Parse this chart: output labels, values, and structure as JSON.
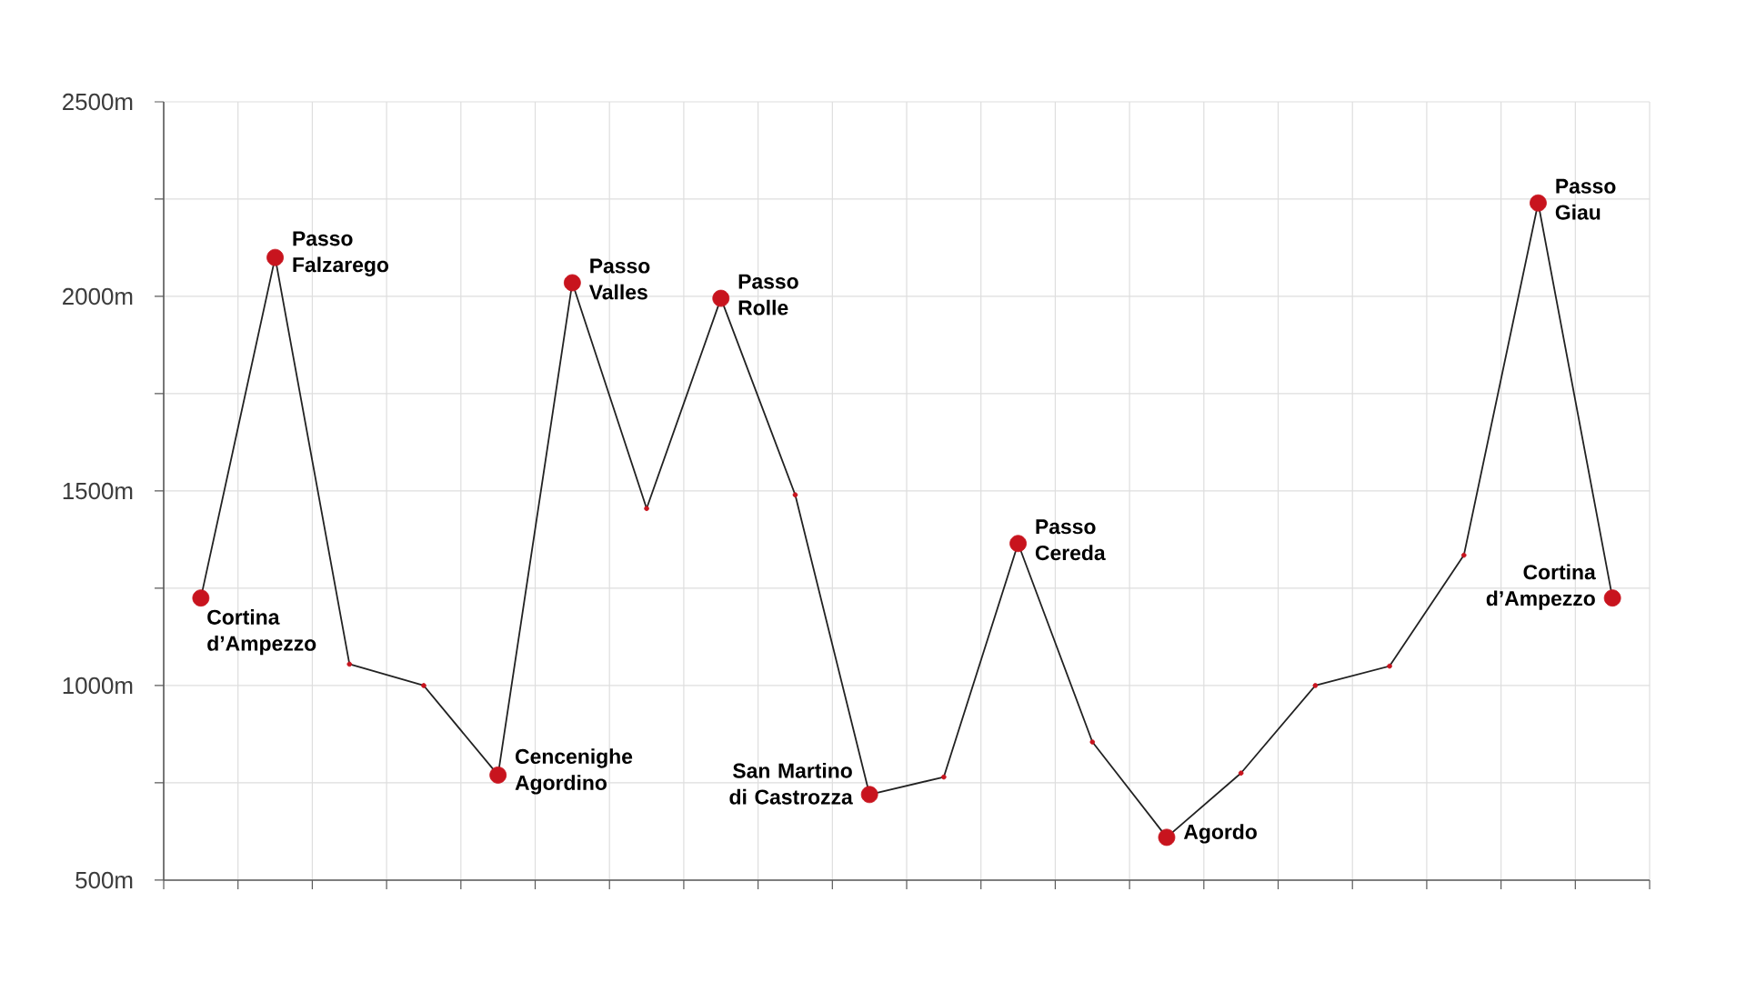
{
  "chart_data": {
    "type": "line",
    "categories": [
      null,
      null,
      null,
      null,
      null,
      null,
      null,
      null,
      null,
      null,
      null,
      null,
      null,
      null,
      null,
      null,
      null,
      null,
      null,
      null
    ],
    "series": [
      {
        "color": "#222222",
        "colors": [
          "#c8141e",
          "#c8141e",
          "#c8141e",
          "#c8141e",
          "#c8141e",
          "#c8141e",
          "#c8141e",
          "#c8141e",
          "#c8141e",
          "#c8141e",
          "#c8141e",
          "#c8141e",
          "#c8141e",
          "#c8141e",
          "#c8141e",
          "#c8141e",
          "#c8141e",
          "#c8141e",
          "#c8141e",
          "#c8141e"
        ],
        "values": [
          1225,
          2100,
          1055,
          1000,
          770,
          2035,
          1455,
          1995,
          1490,
          720,
          765,
          1365,
          855,
          610,
          775,
          1000,
          1050,
          1335,
          2240,
          1225
        ]
      },
      {
        "type": "scatter",
        "color": "#c8141e",
        "values": [
          1225,
          2100,
          null,
          null,
          770,
          2035,
          null,
          1995,
          null,
          720,
          null,
          1365,
          null,
          610,
          null,
          null,
          null,
          null,
          2240,
          1225
        ],
        "value_labels": [
          "Cortina\nd’Ampezzo",
          "Passo\nFalzarego",
          null,
          null,
          "Cencenighe\nAgordino",
          "Passo\nValles",
          null,
          "Passo\nRolle",
          null,
          "San Martino\ndi Castrozza",
          null,
          "Passo\nCereda",
          null,
          "Agordo",
          null,
          null,
          null,
          null,
          "Passo\nGiau",
          "Cortina\nd’Ampezzo"
        ]
      }
    ],
    "ylim": [
      500,
      2500
    ],
    "yticks": [
      {
        "value": 500,
        "label": "500m"
      },
      {
        "value": 750,
        "label": null
      },
      {
        "value": 1000,
        "label": "1000m"
      },
      {
        "value": 1250,
        "label": null
      },
      {
        "value": 1500,
        "label": "1500m"
      },
      {
        "value": 1750,
        "label": null
      },
      {
        "value": 2000,
        "label": "2000m"
      },
      {
        "value": 2250,
        "label": null
      },
      {
        "value": 2500,
        "label": "2500m"
      }
    ],
    "tick_labels": "y",
    "grid": true,
    "marker": "circle",
    "line_style": "solid"
  }
}
